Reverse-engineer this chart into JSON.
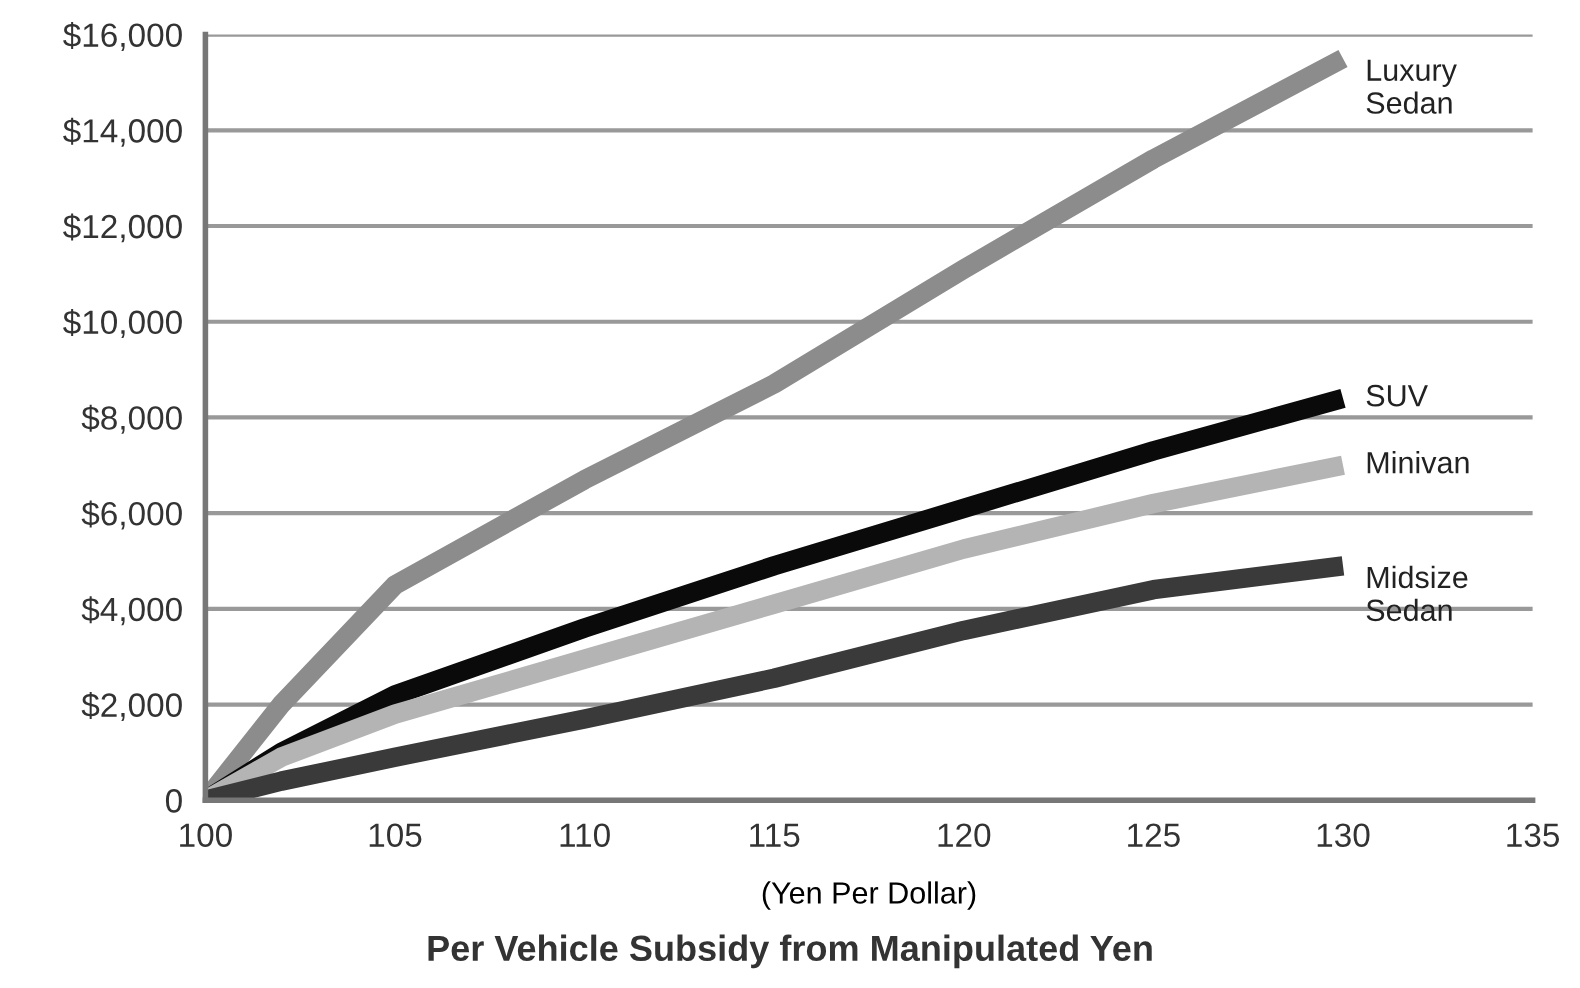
{
  "chart_data": {
    "type": "line",
    "title": "Per Vehicle Subsidy from Manipulated Yen",
    "xlabel": "(Yen Per Dollar)",
    "xlim": [
      100,
      135
    ],
    "xticks": [
      100,
      105,
      110,
      115,
      120,
      125,
      130,
      135
    ],
    "ylim": [
      0,
      16000
    ],
    "yticks": [
      0,
      {
        "value": 2000,
        "label": "$2,000"
      },
      {
        "value": 4000,
        "label": "$4,000"
      },
      {
        "value": 6000,
        "label": "$6,000"
      },
      {
        "value": 8000,
        "label": "$8,000"
      },
      {
        "value": 10000,
        "label": "$10,000"
      },
      {
        "value": 12000,
        "label": "$12,000"
      },
      {
        "value": 14000,
        "label": "$14,000"
      },
      {
        "value": 16000,
        "label": "$16,000"
      }
    ],
    "grid": "y",
    "legend": false,
    "marker": "none",
    "line_style": "solid",
    "x": [
      100,
      102,
      105,
      110,
      115,
      120,
      125,
      130
    ],
    "series": [
      {
        "name": "Luxury Sedan",
        "color": "#8c8c8c",
        "values": [
          0,
          2000,
          4500,
          6700,
          8700,
          11100,
          13400,
          15500
        ]
      },
      {
        "name": "SUV",
        "color": "#0a0a0a",
        "values": [
          0,
          1000,
          2200,
          3600,
          4900,
          6100,
          7300,
          8400
        ]
      },
      {
        "name": "Minivan",
        "color": "#b4b4b4",
        "values": [
          0,
          900,
          1800,
          2950,
          4100,
          5250,
          6200,
          7000
        ]
      },
      {
        "name": "Midsize Sedan",
        "color": "#3a3a3a",
        "values": [
          0,
          400,
          900,
          1700,
          2550,
          3550,
          4400,
          4900
        ]
      }
    ]
  }
}
